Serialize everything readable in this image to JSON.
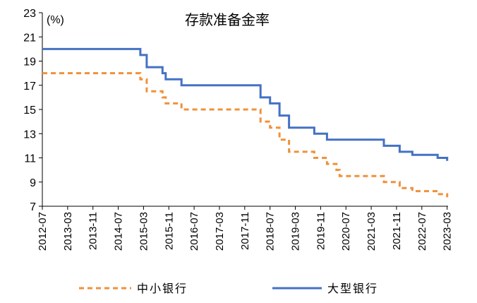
{
  "chart_data": {
    "type": "line",
    "title": "存款准备金率",
    "unit_label": "(%)",
    "ylim": [
      7,
      23
    ],
    "y_ticks": [
      7,
      9,
      11,
      13,
      15,
      17,
      19,
      21,
      23
    ],
    "x_ticks": [
      "2012-07",
      "2013-03",
      "2013-11",
      "2014-07",
      "2015-03",
      "2015-11",
      "2016-07",
      "2017-03",
      "2017-11",
      "2018-07",
      "2019-03",
      "2019-11",
      "2020-07",
      "2021-03",
      "2021-11",
      "2022-07",
      "2023-03"
    ],
    "legend_position": "bottom",
    "series": [
      {
        "name": "中小银行",
        "color": "#F0913A",
        "style": "dashed",
        "points": [
          [
            "2012-07",
            18.0
          ],
          [
            "2015-02",
            18.0
          ],
          [
            "2015-02",
            17.5
          ],
          [
            "2015-04",
            17.5
          ],
          [
            "2015-04",
            16.5
          ],
          [
            "2015-09",
            16.5
          ],
          [
            "2015-09",
            16.0
          ],
          [
            "2015-10",
            16.0
          ],
          [
            "2015-10",
            15.5
          ],
          [
            "2016-03",
            15.5
          ],
          [
            "2016-03",
            15.0
          ],
          [
            "2018-04",
            15.0
          ],
          [
            "2018-04",
            14.0
          ],
          [
            "2018-07",
            14.0
          ],
          [
            "2018-07",
            13.5
          ],
          [
            "2018-10",
            13.5
          ],
          [
            "2018-10",
            12.5
          ],
          [
            "2019-01",
            12.5
          ],
          [
            "2019-01",
            11.5
          ],
          [
            "2019-09",
            11.5
          ],
          [
            "2019-09",
            11.0
          ],
          [
            "2020-01",
            11.0
          ],
          [
            "2020-01",
            10.5
          ],
          [
            "2020-04",
            10.5
          ],
          [
            "2020-04",
            10.0
          ],
          [
            "2020-05",
            10.0
          ],
          [
            "2020-05",
            9.5
          ],
          [
            "2021-07",
            9.5
          ],
          [
            "2021-07",
            9.0
          ],
          [
            "2021-12",
            9.0
          ],
          [
            "2021-12",
            8.5
          ],
          [
            "2022-04",
            8.5
          ],
          [
            "2022-04",
            8.25
          ],
          [
            "2022-12",
            8.25
          ],
          [
            "2022-12",
            8.0
          ],
          [
            "2023-03",
            8.0
          ],
          [
            "2023-03",
            7.75
          ]
        ]
      },
      {
        "name": "大型银行",
        "color": "#4472C4",
        "style": "solid",
        "points": [
          [
            "2012-07",
            20.0
          ],
          [
            "2015-02",
            20.0
          ],
          [
            "2015-02",
            19.5
          ],
          [
            "2015-04",
            19.5
          ],
          [
            "2015-04",
            18.5
          ],
          [
            "2015-09",
            18.5
          ],
          [
            "2015-09",
            18.0
          ],
          [
            "2015-10",
            18.0
          ],
          [
            "2015-10",
            17.5
          ],
          [
            "2016-03",
            17.5
          ],
          [
            "2016-03",
            17.0
          ],
          [
            "2018-04",
            17.0
          ],
          [
            "2018-04",
            16.0
          ],
          [
            "2018-07",
            16.0
          ],
          [
            "2018-07",
            15.5
          ],
          [
            "2018-10",
            15.5
          ],
          [
            "2018-10",
            14.5
          ],
          [
            "2019-01",
            14.5
          ],
          [
            "2019-01",
            13.5
          ],
          [
            "2019-09",
            13.5
          ],
          [
            "2019-09",
            13.0
          ],
          [
            "2020-01",
            13.0
          ],
          [
            "2020-01",
            12.5
          ],
          [
            "2021-07",
            12.5
          ],
          [
            "2021-07",
            12.0
          ],
          [
            "2021-12",
            12.0
          ],
          [
            "2021-12",
            11.5
          ],
          [
            "2022-04",
            11.5
          ],
          [
            "2022-04",
            11.25
          ],
          [
            "2022-12",
            11.25
          ],
          [
            "2022-12",
            11.0
          ],
          [
            "2023-03",
            11.0
          ],
          [
            "2023-03",
            10.75
          ]
        ]
      }
    ]
  }
}
